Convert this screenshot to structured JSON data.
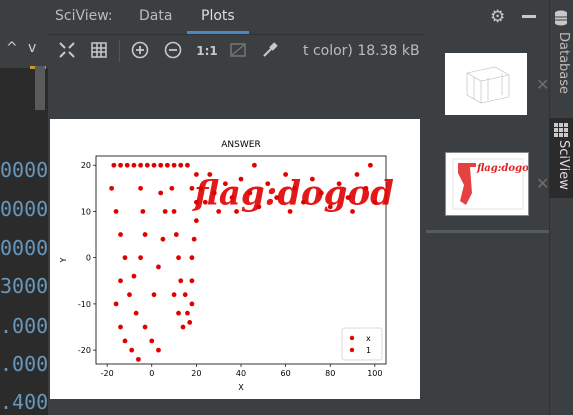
{
  "tool_window": {
    "title": "SciView:",
    "tabs": [
      {
        "label": "Data",
        "active": false
      },
      {
        "label": "Plots",
        "active": true
      }
    ],
    "accent_color": "#4a88c7"
  },
  "toolbar": {
    "zoom_actual_label": "1:1",
    "status_text": "t color) 18.38 kB",
    "icons": [
      "fit-screen-icon",
      "grid-icon",
      "zoom-in-icon",
      "zoom-out-icon",
      "actual-size-icon",
      "background-toggle-icon",
      "color-picker-icon"
    ]
  },
  "header_icons": [
    "gear-icon",
    "minimize-icon"
  ],
  "right_stripe": {
    "items": [
      {
        "label": "Database",
        "active": false
      },
      {
        "label": "SciView",
        "active": true
      }
    ]
  },
  "editor": {
    "nav_left": "^",
    "nav_right": "v",
    "numbers": [
      "0000",
      "0000",
      "0000",
      "3000",
      ".000",
      ".000",
      ".400"
    ]
  },
  "plot": {
    "overlay_text": "flag:dogod"
  },
  "chart_data": {
    "type": "scatter",
    "title": "ANSWER",
    "xlabel": "X",
    "ylabel": "Y",
    "xlim": [
      -25,
      105
    ],
    "ylim": [
      -23,
      22
    ],
    "xticks": [
      "-20",
      "0",
      "20",
      "40",
      "60",
      "80",
      "100"
    ],
    "yticks": [
      "-20",
      "-10",
      "0",
      "10",
      "20"
    ],
    "legend": {
      "placement": "bottom-right",
      "entries": [
        "x",
        "1"
      ]
    },
    "series": [
      {
        "name": "x",
        "color": "#e00000",
        "values": [
          [
            -17,
            20
          ],
          [
            -14,
            20
          ],
          [
            -11,
            20
          ],
          [
            -8,
            20
          ],
          [
            -5,
            20
          ],
          [
            -2,
            20
          ],
          [
            1,
            20
          ],
          [
            4,
            20
          ],
          [
            7,
            20
          ],
          [
            10,
            20
          ],
          [
            13,
            20
          ],
          [
            16,
            20
          ],
          [
            -18,
            15
          ],
          [
            -16,
            10
          ],
          [
            -14,
            5
          ],
          [
            -12,
            0
          ],
          [
            -14,
            -5
          ],
          [
            -16,
            -10
          ],
          [
            -14,
            -15
          ],
          [
            -12,
            -18
          ],
          [
            -9,
            -20
          ],
          [
            -6,
            -22
          ],
          [
            -5,
            15
          ],
          [
            -4,
            10
          ],
          [
            -3,
            5
          ],
          [
            -5,
            0
          ],
          [
            -8,
            -4
          ],
          [
            -10,
            -8
          ],
          [
            -7,
            -12
          ],
          [
            -3,
            -15
          ],
          [
            0,
            -18
          ],
          [
            3,
            -20
          ],
          [
            9,
            15
          ],
          [
            10,
            10
          ],
          [
            11,
            5
          ],
          [
            12,
            0
          ],
          [
            13,
            -5
          ],
          [
            15,
            -8
          ],
          [
            16,
            -12
          ],
          [
            14,
            -15
          ],
          [
            12,
            -12
          ],
          [
            10,
            -8
          ],
          [
            18,
            15
          ],
          [
            20,
            12
          ],
          [
            20,
            8
          ],
          [
            19,
            4
          ],
          [
            18,
            0
          ],
          [
            18,
            -5
          ],
          [
            18,
            -10
          ],
          [
            17,
            -14
          ],
          [
            4,
            14
          ],
          [
            6,
            10
          ],
          [
            5,
            4
          ],
          [
            3,
            -2
          ],
          [
            1,
            -8
          ]
        ]
      },
      {
        "name": "1",
        "color": "#e00000",
        "values": [
          [
            20,
            18
          ],
          [
            22,
            15
          ],
          [
            24,
            12
          ],
          [
            26,
            18
          ],
          [
            28,
            14
          ],
          [
            30,
            10
          ],
          [
            33,
            16
          ],
          [
            36,
            13
          ],
          [
            40,
            17
          ],
          [
            44,
            14
          ],
          [
            48,
            11
          ],
          [
            52,
            16
          ],
          [
            56,
            13
          ],
          [
            60,
            18
          ],
          [
            64,
            15
          ],
          [
            68,
            12
          ],
          [
            72,
            17
          ],
          [
            76,
            14
          ],
          [
            80,
            11
          ],
          [
            84,
            16
          ],
          [
            88,
            13
          ],
          [
            92,
            18
          ],
          [
            96,
            15
          ],
          [
            100,
            12
          ],
          [
            98,
            20
          ],
          [
            90,
            10
          ],
          [
            62,
            10
          ],
          [
            46,
            20
          ],
          [
            38,
            10
          ]
        ]
      }
    ]
  }
}
